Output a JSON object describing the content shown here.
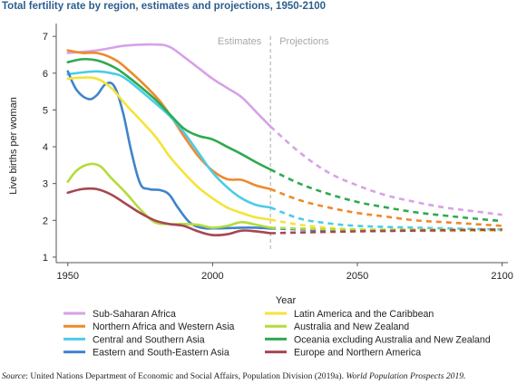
{
  "title": "Total fertility rate by region, estimates and projections, 1950-2100",
  "source": {
    "label": "Source",
    "text": ": United Nations Department of Economic and Social Affairs, Population Division (2019a). ",
    "publication": "World Population Prospects 2019."
  },
  "chart_data": {
    "type": "line",
    "xlabel": "Year",
    "ylabel": "Live births per woman",
    "xlim": [
      1946,
      2102
    ],
    "ylim": [
      0.85,
      7.3
    ],
    "x_ticks": [
      1950,
      2000,
      2050,
      2100
    ],
    "y_ticks": [
      1,
      2,
      3,
      4,
      5,
      6,
      7
    ],
    "grid": false,
    "legend_position": "bottom",
    "divider_year": 2020,
    "region_labels": {
      "estimates": "Estimates",
      "projections": "Projections"
    },
    "series": [
      {
        "name": "Sub-Saharan Africa",
        "color": "#d7a2e6",
        "estimates": [
          [
            1950,
            6.55
          ],
          [
            1960,
            6.62
          ],
          [
            1970,
            6.75
          ],
          [
            1980,
            6.78
          ],
          [
            1985,
            6.72
          ],
          [
            1990,
            6.45
          ],
          [
            1995,
            6.15
          ],
          [
            2000,
            5.85
          ],
          [
            2005,
            5.6
          ],
          [
            2010,
            5.35
          ],
          [
            2015,
            4.95
          ],
          [
            2020,
            4.55
          ]
        ],
        "projections": [
          [
            2020,
            4.55
          ],
          [
            2030,
            3.85
          ],
          [
            2040,
            3.3
          ],
          [
            2050,
            2.95
          ],
          [
            2060,
            2.68
          ],
          [
            2070,
            2.5
          ],
          [
            2080,
            2.35
          ],
          [
            2090,
            2.25
          ],
          [
            2100,
            2.15
          ]
        ]
      },
      {
        "name": "Northern Africa and Western Asia",
        "color": "#ee8a2c",
        "estimates": [
          [
            1950,
            6.62
          ],
          [
            1955,
            6.55
          ],
          [
            1960,
            6.55
          ],
          [
            1965,
            6.42
          ],
          [
            1970,
            6.15
          ],
          [
            1980,
            5.4
          ],
          [
            1985,
            4.9
          ],
          [
            1990,
            4.3
          ],
          [
            1995,
            3.75
          ],
          [
            2000,
            3.35
          ],
          [
            2005,
            3.12
          ],
          [
            2010,
            3.1
          ],
          [
            2015,
            2.95
          ],
          [
            2020,
            2.85
          ]
        ],
        "projections": [
          [
            2020,
            2.85
          ],
          [
            2030,
            2.55
          ],
          [
            2040,
            2.35
          ],
          [
            2050,
            2.2
          ],
          [
            2060,
            2.1
          ],
          [
            2070,
            2.0
          ],
          [
            2080,
            1.95
          ],
          [
            2090,
            1.9
          ],
          [
            2100,
            1.85
          ]
        ]
      },
      {
        "name": "Central and Southern Asia",
        "color": "#4ccbe8",
        "estimates": [
          [
            1950,
            5.97
          ],
          [
            1955,
            6.02
          ],
          [
            1960,
            6.05
          ],
          [
            1965,
            6.0
          ],
          [
            1970,
            5.85
          ],
          [
            1980,
            5.2
          ],
          [
            1985,
            4.85
          ],
          [
            1990,
            4.4
          ],
          [
            1995,
            3.85
          ],
          [
            2000,
            3.3
          ],
          [
            2005,
            2.9
          ],
          [
            2010,
            2.6
          ],
          [
            2015,
            2.42
          ],
          [
            2020,
            2.35
          ]
        ],
        "projections": [
          [
            2020,
            2.35
          ],
          [
            2030,
            2.05
          ],
          [
            2040,
            1.92
          ],
          [
            2050,
            1.85
          ],
          [
            2070,
            1.8
          ],
          [
            2100,
            1.75
          ]
        ]
      },
      {
        "name": "Eastern and South-Eastern Asia",
        "color": "#3f84cc",
        "estimates": [
          [
            1950,
            6.05
          ],
          [
            1953,
            5.55
          ],
          [
            1957,
            5.3
          ],
          [
            1960,
            5.4
          ],
          [
            1963,
            5.7
          ],
          [
            1966,
            5.65
          ],
          [
            1969,
            4.95
          ],
          [
            1972,
            3.85
          ],
          [
            1975,
            3.0
          ],
          [
            1978,
            2.85
          ],
          [
            1982,
            2.82
          ],
          [
            1985,
            2.7
          ],
          [
            1988,
            2.35
          ],
          [
            1992,
            1.95
          ],
          [
            1996,
            1.8
          ],
          [
            2000,
            1.78
          ],
          [
            2010,
            1.8
          ],
          [
            2015,
            1.8
          ],
          [
            2020,
            1.78
          ]
        ],
        "projections": [
          [
            2020,
            1.78
          ],
          [
            2050,
            1.72
          ],
          [
            2100,
            1.72
          ]
        ]
      },
      {
        "name": "Latin America and the Caribbean",
        "color": "#f5e33b",
        "estimates": [
          [
            1950,
            5.85
          ],
          [
            1955,
            5.88
          ],
          [
            1960,
            5.85
          ],
          [
            1965,
            5.6
          ],
          [
            1970,
            5.15
          ],
          [
            1980,
            4.3
          ],
          [
            1985,
            3.75
          ],
          [
            1990,
            3.3
          ],
          [
            1995,
            2.9
          ],
          [
            2000,
            2.6
          ],
          [
            2005,
            2.35
          ],
          [
            2010,
            2.2
          ],
          [
            2015,
            2.08
          ],
          [
            2020,
            2.02
          ]
        ],
        "projections": [
          [
            2020,
            2.02
          ],
          [
            2030,
            1.88
          ],
          [
            2040,
            1.8
          ],
          [
            2050,
            1.75
          ],
          [
            2070,
            1.72
          ],
          [
            2100,
            1.72
          ]
        ]
      },
      {
        "name": "Australia and New Zealand",
        "color": "#b3dc3c",
        "estimates": [
          [
            1950,
            3.05
          ],
          [
            1953,
            3.35
          ],
          [
            1957,
            3.52
          ],
          [
            1961,
            3.48
          ],
          [
            1965,
            3.15
          ],
          [
            1970,
            2.75
          ],
          [
            1975,
            2.3
          ],
          [
            1980,
            1.95
          ],
          [
            1985,
            1.9
          ],
          [
            1990,
            1.9
          ],
          [
            1995,
            1.88
          ],
          [
            2000,
            1.8
          ],
          [
            2005,
            1.85
          ],
          [
            2010,
            1.95
          ],
          [
            2015,
            1.88
          ],
          [
            2020,
            1.8
          ]
        ],
        "projections": [
          [
            2020,
            1.8
          ],
          [
            2050,
            1.75
          ],
          [
            2100,
            1.75
          ]
        ]
      },
      {
        "name": "Oceania excluding Australia and New Zealand",
        "color": "#2eaa4f",
        "estimates": [
          [
            1950,
            6.3
          ],
          [
            1955,
            6.38
          ],
          [
            1960,
            6.35
          ],
          [
            1965,
            6.2
          ],
          [
            1970,
            5.95
          ],
          [
            1980,
            5.3
          ],
          [
            1985,
            4.9
          ],
          [
            1990,
            4.5
          ],
          [
            1995,
            4.3
          ],
          [
            2000,
            4.2
          ],
          [
            2005,
            4.0
          ],
          [
            2010,
            3.8
          ],
          [
            2015,
            3.58
          ],
          [
            2020,
            3.38
          ]
        ],
        "projections": [
          [
            2020,
            3.38
          ],
          [
            2030,
            3.0
          ],
          [
            2040,
            2.72
          ],
          [
            2050,
            2.5
          ],
          [
            2060,
            2.35
          ],
          [
            2070,
            2.22
          ],
          [
            2080,
            2.13
          ],
          [
            2090,
            2.05
          ],
          [
            2100,
            1.98
          ]
        ]
      },
      {
        "name": "Europe and Northern America",
        "color": "#a64653",
        "estimates": [
          [
            1950,
            2.75
          ],
          [
            1955,
            2.85
          ],
          [
            1960,
            2.85
          ],
          [
            1965,
            2.7
          ],
          [
            1970,
            2.45
          ],
          [
            1975,
            2.2
          ],
          [
            1980,
            2.0
          ],
          [
            1985,
            1.9
          ],
          [
            1990,
            1.85
          ],
          [
            1995,
            1.7
          ],
          [
            2000,
            1.6
          ],
          [
            2005,
            1.62
          ],
          [
            2010,
            1.72
          ],
          [
            2015,
            1.7
          ],
          [
            2020,
            1.65
          ]
        ],
        "projections": [
          [
            2020,
            1.65
          ],
          [
            2050,
            1.7
          ],
          [
            2100,
            1.75
          ]
        ]
      }
    ],
    "legend_order": [
      0,
      4,
      1,
      5,
      2,
      6,
      3,
      7
    ]
  }
}
